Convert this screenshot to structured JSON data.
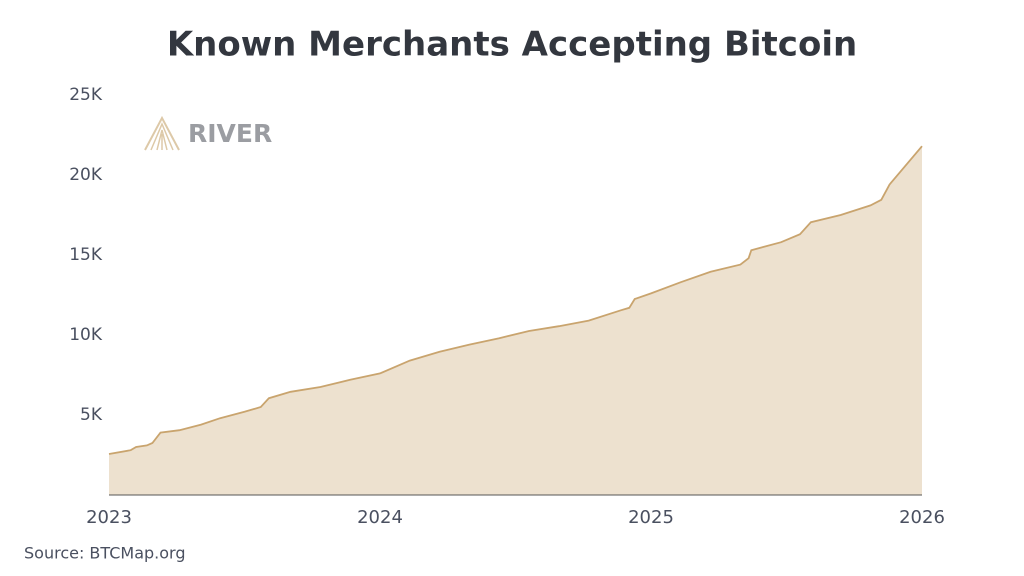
{
  "chart_data": {
    "type": "area",
    "title": "Known Merchants Accepting Bitcoin",
    "logo": "RIVER",
    "source": "Source: BTCMap.org",
    "color": "#c9a46e",
    "fill": "#ede1cf",
    "x": [
      2023.0,
      2023.08,
      2023.1,
      2023.14,
      2023.16,
      2023.19,
      2023.26,
      2023.34,
      2023.41,
      2023.5,
      2023.56,
      2023.59,
      2023.67,
      2023.78,
      2023.89,
      2024.0,
      2024.11,
      2024.22,
      2024.33,
      2024.44,
      2024.55,
      2024.66,
      2024.77,
      2024.89,
      2024.92,
      2024.94,
      2025.0,
      2025.11,
      2025.22,
      2025.33,
      2025.36,
      2025.37,
      2025.48,
      2025.55,
      2025.59,
      2025.7,
      2025.81,
      2025.85,
      2025.88,
      2025.92,
      2026.0
    ],
    "values": [
      2560,
      2800,
      3000,
      3100,
      3250,
      3900,
      4050,
      4400,
      4800,
      5200,
      5500,
      6050,
      6450,
      6750,
      7200,
      7600,
      8400,
      8950,
      9400,
      9800,
      10250,
      10550,
      10900,
      11550,
      11700,
      12250,
      12600,
      13300,
      13950,
      14400,
      14800,
      15300,
      15800,
      16300,
      17050,
      17500,
      18100,
      18450,
      19400,
      20200,
      21800
    ],
    "xlim": [
      2023,
      2026
    ],
    "xticks": [
      2023,
      2024,
      2025,
      2026
    ],
    "ylim": [
      0,
      25000
    ],
    "yticks": [
      {
        "value": 5000,
        "label": "5K"
      },
      {
        "value": 10000,
        "label": "10K"
      },
      {
        "value": 15000,
        "label": "15K"
      },
      {
        "value": 20000,
        "label": "20K"
      },
      {
        "value": 25000,
        "label": "25K"
      }
    ]
  }
}
